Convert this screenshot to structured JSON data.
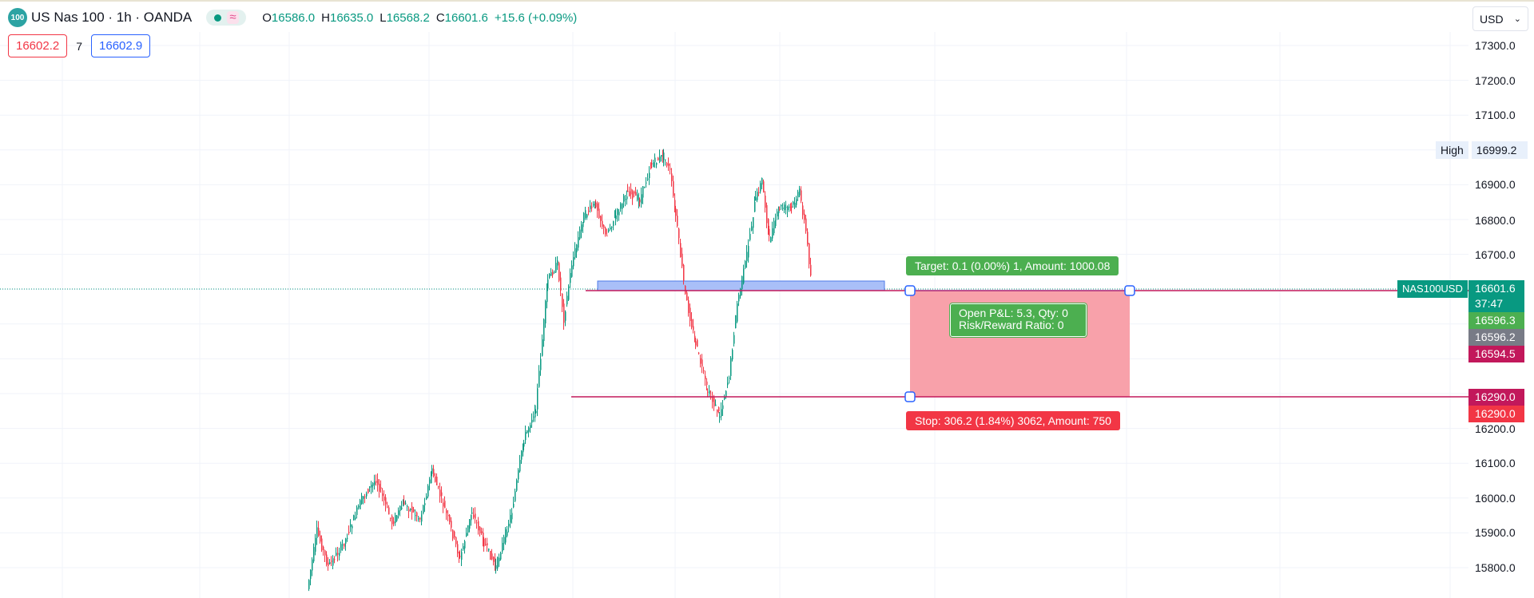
{
  "header": {
    "symbol_badge": "100",
    "title": "US Nas 100 · 1h · OANDA",
    "wave_icon": "≈",
    "ohlc": [
      {
        "key": "O",
        "value": "16586.0"
      },
      {
        "key": "H",
        "value": "16635.0"
      },
      {
        "key": "L",
        "value": "16568.2"
      },
      {
        "key": "C",
        "value": "16601.6"
      }
    ],
    "change": "+15.6 (+0.09%)"
  },
  "trading": {
    "sell_price": "16602.2",
    "spread": "7",
    "buy_price": "16602.9"
  },
  "currency": {
    "selected": "USD"
  },
  "price_axis": {
    "ticks": [
      "17300.0",
      "17200.0",
      "17100.0",
      "16900.0",
      "16800.0",
      "16700.0",
      "16200.0",
      "16100.0",
      "16000.0",
      "15900.0",
      "15800.0"
    ]
  },
  "high_marker": {
    "label": "High",
    "value": "16999.2"
  },
  "last_price": {
    "symbol": "NAS100USD",
    "price": "16601.6",
    "countdown": "37:47"
  },
  "axis_tags": {
    "entry_green": "16596.3",
    "grey": "16596.2",
    "entry_magenta": "16594.5",
    "stop_magenta": "16290.0",
    "stop_red": "16290.0"
  },
  "position": {
    "target_label": "Target: 0.1 (0.00%) 1, Amount: 1000.08",
    "stop_label": "Stop: 306.2 (1.84%) 3062, Amount: 750",
    "pnl_line1": "Open P&L: 5.3, Qty: 0",
    "pnl_line2": "Risk/Reward Ratio: 0"
  },
  "colors": {
    "up": "#089981",
    "down": "#f23645",
    "target_green": "#4caf50",
    "stop_red": "#f23645",
    "stop_zone": "#f89ca5",
    "line_magenta": "#c2185b",
    "zone_blue": "#a9bff8"
  }
}
